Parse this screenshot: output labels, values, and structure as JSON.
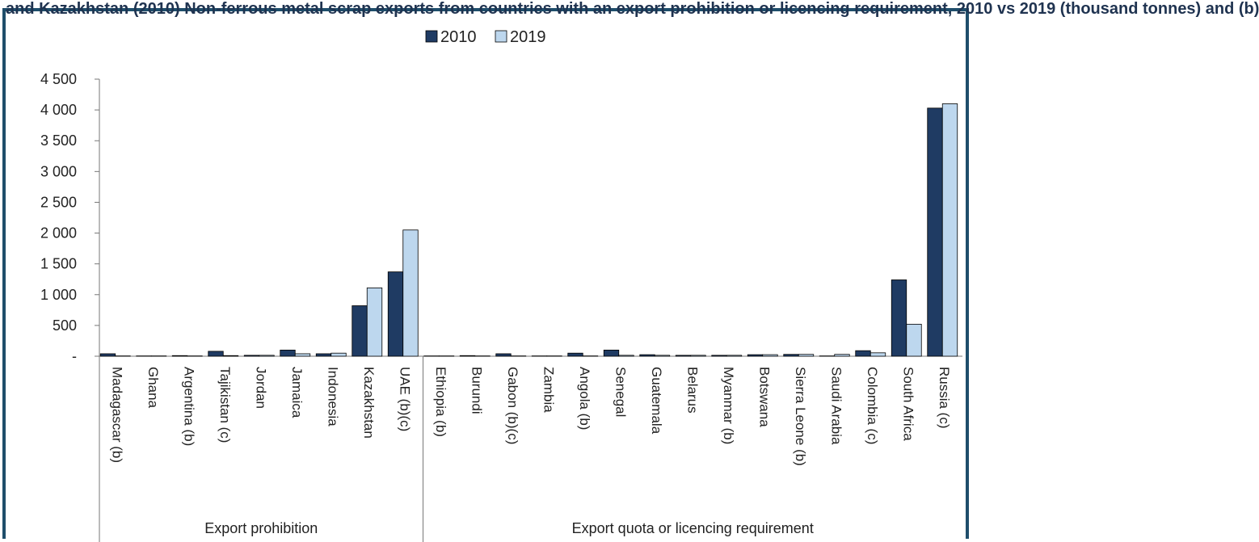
{
  "header": {
    "title": "and Kazakhstan (2010) Non-ferrous metal scrap exports from countries with an export prohibition or licencing requirement, 2010 vs 2019 (thousand tonnes) and (b)"
  },
  "chart_data": {
    "type": "bar",
    "title": "",
    "xlabel": "",
    "ylabel": "",
    "ylim": [
      0,
      4500
    ],
    "yticks": [
      0,
      500,
      1000,
      1500,
      2000,
      2500,
      3000,
      3500,
      4000,
      4500
    ],
    "ytick_labels": [
      "-",
      "500",
      "1 000",
      "1 500",
      "2 000",
      "2 500",
      "3 000",
      "3 500",
      "4 000",
      "4 500"
    ],
    "grid": false,
    "legend_position": "top-center",
    "colors": {
      "2010": "#1f3b63",
      "2019": "#bdd7ee"
    },
    "categories": [
      "Madagascar (b)",
      "Ghana",
      "Argentina (b)",
      "Tajikistan (c)",
      "Jordan",
      "Jamaica",
      "Indonesia",
      "Kazakhstan",
      "UAE (b)(c)",
      "Ethiopia (b)",
      "Burundi",
      "Gabon (b)(c)",
      "Zambia",
      "Angola (b)",
      "Senegal",
      "Guatemala",
      "Belarus",
      "Myanmar (b)",
      "Botswana",
      "Sierra Leone (b)",
      "Saudi Arabia",
      "Colombia (c)",
      "South Africa",
      "Russia (c)"
    ],
    "groups": [
      {
        "name": "Export prohibition",
        "count": 9
      },
      {
        "name": "Export quota or licencing requirement",
        "count": 15
      }
    ],
    "series": [
      {
        "name": "2010",
        "values": [
          40,
          5,
          10,
          80,
          15,
          100,
          40,
          820,
          1370,
          5,
          10,
          40,
          5,
          50,
          100,
          25,
          15,
          15,
          25,
          30,
          5,
          90,
          1240,
          4030
        ]
      },
      {
        "name": "2019",
        "values": [
          5,
          5,
          5,
          10,
          15,
          40,
          50,
          1110,
          2050,
          5,
          5,
          5,
          5,
          5,
          15,
          15,
          15,
          15,
          25,
          30,
          30,
          55,
          520,
          4100
        ]
      }
    ]
  }
}
